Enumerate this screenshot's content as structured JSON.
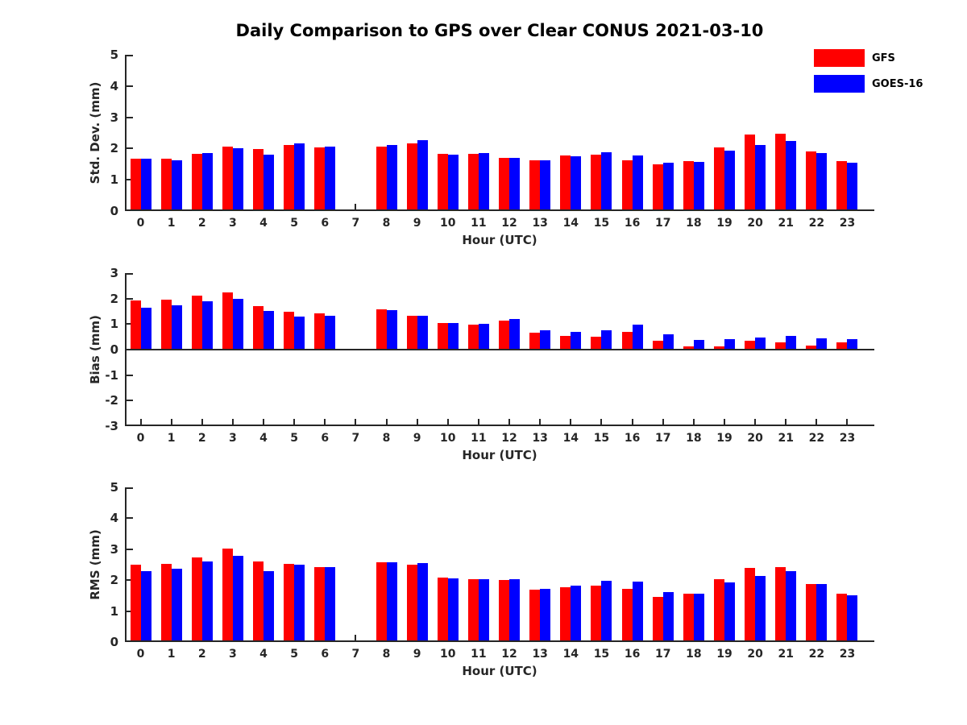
{
  "title": "Daily Comparison to GPS over Clear CONUS 2021-03-10",
  "legend": {
    "position": "top-right",
    "items": [
      {
        "label": "GFS",
        "color": "#ff0000"
      },
      {
        "label": "GOES-16",
        "color": "#0000ff"
      }
    ]
  },
  "colors": {
    "gfs": "#ff0000",
    "goes16": "#0000ff",
    "axis": "#262626",
    "background": "#ffffff"
  },
  "chart_data": [
    {
      "type": "bar",
      "ylabel": "Std. Dev. (mm)",
      "xlabel": "Hour (UTC)",
      "ylim": [
        0,
        5
      ],
      "yticks": [
        0,
        1,
        2,
        3,
        4,
        5
      ],
      "grid": false,
      "categories": [
        "0",
        "1",
        "2",
        "3",
        "4",
        "5",
        "6",
        "7",
        "8",
        "9",
        "10",
        "11",
        "12",
        "13",
        "14",
        "15",
        "16",
        "17",
        "18",
        "19",
        "20",
        "21",
        "22",
        "23"
      ],
      "missing_hours": [
        7
      ],
      "series": [
        {
          "name": "GFS",
          "color": "#ff0000",
          "values": [
            1.62,
            1.62,
            1.77,
            2.02,
            1.93,
            2.06,
            1.98,
            null,
            2.01,
            2.12,
            1.78,
            1.77,
            1.65,
            1.56,
            1.72,
            1.76,
            1.57,
            1.44,
            1.54,
            1.99,
            2.4,
            2.42,
            1.85,
            1.54
          ]
        },
        {
          "name": "GOES-16",
          "color": "#0000ff",
          "values": [
            1.63,
            1.58,
            1.8,
            1.97,
            1.76,
            2.12,
            2.01,
            null,
            2.07,
            2.21,
            1.75,
            1.8,
            1.65,
            1.56,
            1.7,
            1.83,
            1.73,
            1.5,
            1.51,
            1.87,
            2.05,
            2.19,
            1.8,
            1.49
          ]
        }
      ]
    },
    {
      "type": "bar",
      "ylabel": "Bias (mm)",
      "xlabel": "Hour (UTC)",
      "ylim": [
        -3,
        3
      ],
      "yticks": [
        -3,
        -2,
        -1,
        0,
        1,
        2,
        3
      ],
      "grid": false,
      "categories": [
        "0",
        "1",
        "2",
        "3",
        "4",
        "5",
        "6",
        "7",
        "8",
        "9",
        "10",
        "11",
        "12",
        "13",
        "14",
        "15",
        "16",
        "17",
        "18",
        "19",
        "20",
        "21",
        "22",
        "23"
      ],
      "missing_hours": [
        7
      ],
      "series": [
        {
          "name": "GFS",
          "color": "#ff0000",
          "values": [
            1.88,
            1.92,
            2.07,
            2.22,
            1.68,
            1.45,
            1.39,
            null,
            1.55,
            1.31,
            1.02,
            0.95,
            1.09,
            0.63,
            0.52,
            0.48,
            0.66,
            0.32,
            0.08,
            0.1,
            0.31,
            0.25,
            0.13,
            0.25
          ]
        },
        {
          "name": "GOES-16",
          "color": "#0000ff",
          "values": [
            1.6,
            1.7,
            1.86,
            1.97,
            1.48,
            1.26,
            1.28,
            null,
            1.51,
            1.28,
            1.0,
            0.99,
            1.17,
            0.74,
            0.66,
            0.72,
            0.96,
            0.58,
            0.35,
            0.39,
            0.45,
            0.51,
            0.41,
            0.39
          ]
        }
      ]
    },
    {
      "type": "bar",
      "ylabel": "RMS (mm)",
      "xlabel": "Hour (UTC)",
      "ylim": [
        0,
        5
      ],
      "yticks": [
        0,
        1,
        2,
        3,
        4,
        5
      ],
      "grid": false,
      "categories": [
        "0",
        "1",
        "2",
        "3",
        "4",
        "5",
        "6",
        "7",
        "8",
        "9",
        "10",
        "11",
        "12",
        "13",
        "14",
        "15",
        "16",
        "17",
        "18",
        "19",
        "20",
        "21",
        "22",
        "23"
      ],
      "missing_hours": [
        7
      ],
      "series": [
        {
          "name": "GFS",
          "color": "#ff0000",
          "values": [
            2.44,
            2.47,
            2.69,
            2.98,
            2.55,
            2.47,
            2.36,
            null,
            2.52,
            2.44,
            2.03,
            1.97,
            1.95,
            1.65,
            1.73,
            1.76,
            1.66,
            1.41,
            1.5,
            1.97,
            2.35,
            2.38,
            1.82,
            1.5
          ]
        },
        {
          "name": "GOES-16",
          "color": "#0000ff",
          "values": [
            2.25,
            2.31,
            2.55,
            2.74,
            2.25,
            2.44,
            2.37,
            null,
            2.53,
            2.5,
            2.0,
            1.99,
            1.98,
            1.68,
            1.77,
            1.92,
            1.91,
            1.55,
            1.52,
            1.87,
            2.08,
            2.23,
            1.82,
            1.47
          ]
        }
      ]
    }
  ]
}
